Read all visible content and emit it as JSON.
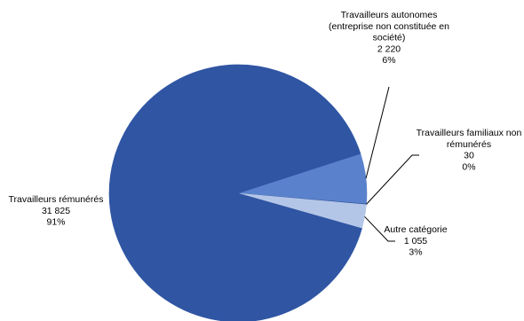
{
  "chart_data": {
    "type": "pie",
    "title": "",
    "slices": [
      {
        "name_lines": [
          "Travailleurs autonomes",
          "(entreprise non constituée en",
          "société)"
        ],
        "value_label": "2 220",
        "percent_label": "6%",
        "value": 2220,
        "color": "#5a82cc"
      },
      {
        "name_lines": [
          "Travailleurs familiaux non",
          "rémunérés"
        ],
        "value_label": "30",
        "percent_label": "0%",
        "value": 30,
        "color": "#2d4e98"
      },
      {
        "name_lines": [
          "Autre catégorie"
        ],
        "value_label": "1 055",
        "percent_label": "3%",
        "value": 1055,
        "color": "#b4c6e7"
      },
      {
        "name_lines": [
          "Travailleurs rémunérés"
        ],
        "value_label": "31 825",
        "percent_label": "91%",
        "value": 31825,
        "color": "#2f55a3"
      }
    ]
  }
}
